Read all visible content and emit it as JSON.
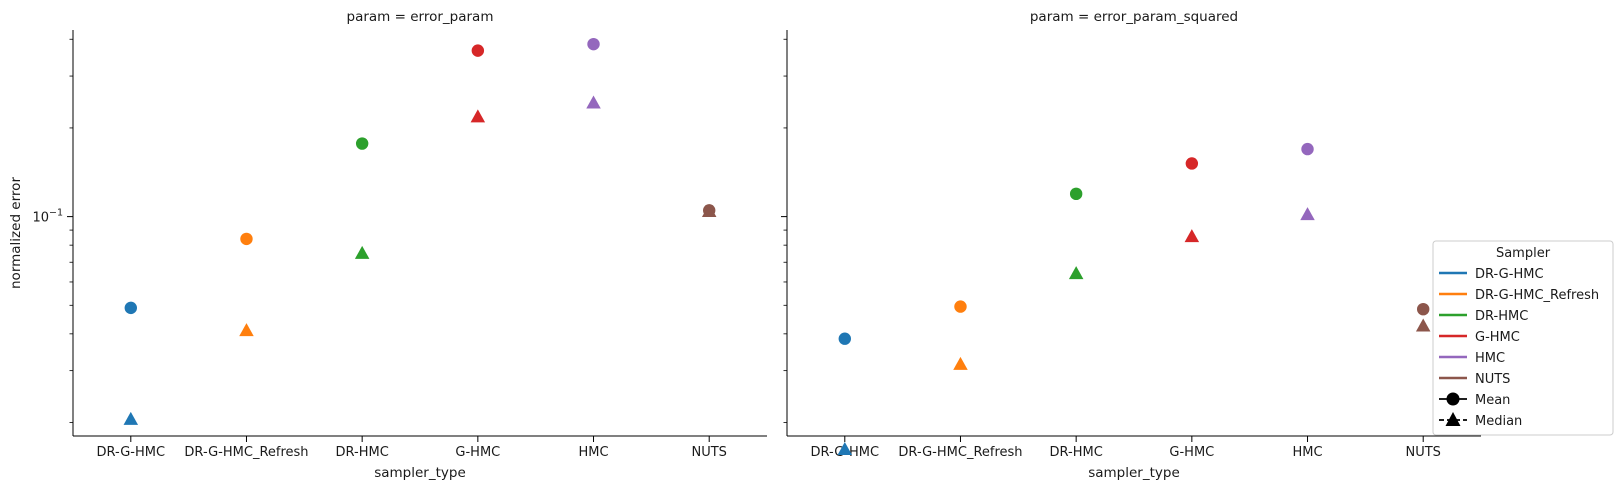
{
  "chart_data": [
    {
      "type": "scatter",
      "title": "param = error_param",
      "xlabel": "sampler_type",
      "ylabel": "normalized error",
      "yscale": "log",
      "ylim": [
        0.018,
        0.43
      ],
      "yticks": [
        {
          "value": 0.1,
          "base": "10",
          "exp": "−1"
        }
      ],
      "categories": [
        "DR-G-HMC",
        "DR-G-HMC_Refresh",
        "DR-HMC",
        "G-HMC",
        "HMC",
        "NUTS"
      ],
      "series": [
        {
          "name": "Mean",
          "marker": "circle",
          "values": [
            0.049,
            0.084,
            0.177,
            0.366,
            0.385,
            0.105
          ]
        },
        {
          "name": "Median",
          "marker": "triangle",
          "values": [
            0.0205,
            0.041,
            0.075,
            0.218,
            0.243,
            0.104
          ]
        }
      ]
    },
    {
      "type": "scatter",
      "title": "param = error_param_squared",
      "xlabel": "sampler_type",
      "ylabel": "",
      "yscale": "log",
      "ylim": [
        0.018,
        0.43
      ],
      "yticks": [],
      "categories": [
        "DR-G-HMC",
        "DR-G-HMC_Refresh",
        "DR-HMC",
        "G-HMC",
        "HMC",
        "NUTS"
      ],
      "series": [
        {
          "name": "Mean",
          "marker": "circle",
          "values": [
            0.0385,
            0.0495,
            0.1195,
            0.1515,
            0.1695,
            0.0485
          ]
        },
        {
          "name": "Median",
          "marker": "triangle",
          "values": [
            0.0162,
            0.0315,
            0.064,
            0.0855,
            0.1015,
            0.0425
          ]
        }
      ]
    }
  ],
  "colors": {
    "DR-G-HMC": "#1f77b4",
    "DR-G-HMC_Refresh": "#ff7f0e",
    "DR-HMC": "#2ca02c",
    "G-HMC": "#d62728",
    "HMC": "#9467bd",
    "NUTS": "#8c564b"
  },
  "legend": {
    "title": "Sampler",
    "location": "right",
    "hue_items": [
      "DR-G-HMC",
      "DR-G-HMC_Refresh",
      "DR-HMC",
      "G-HMC",
      "HMC",
      "NUTS"
    ],
    "style_items": [
      {
        "label": "Mean",
        "marker": "circle",
        "dash": "solid"
      },
      {
        "label": "Median",
        "marker": "triangle",
        "dash": "dashed"
      }
    ]
  }
}
